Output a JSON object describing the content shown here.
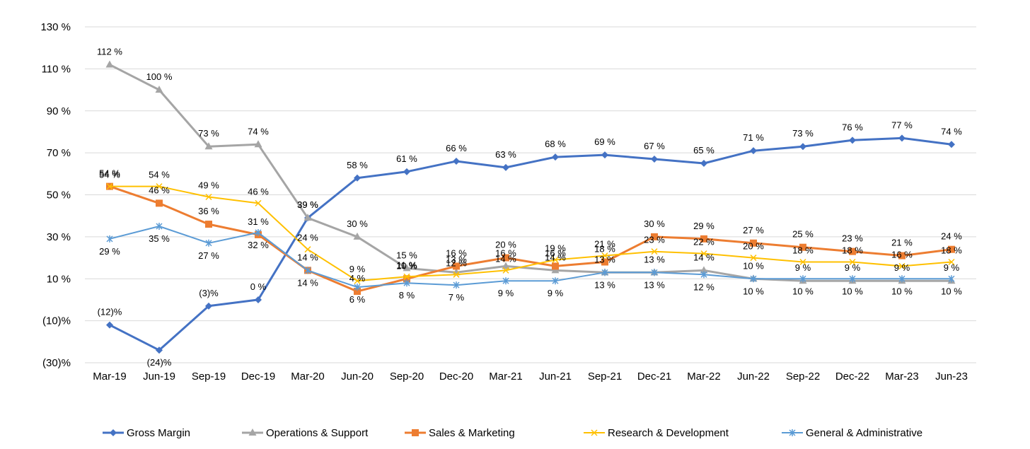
{
  "chart_data": {
    "type": "line",
    "categories": [
      "Mar-19",
      "Jun-19",
      "Sep-19",
      "Dec-19",
      "Mar-20",
      "Jun-20",
      "Sep-20",
      "Dec-20",
      "Mar-21",
      "Jun-21",
      "Sep-21",
      "Dec-21",
      "Mar-22",
      "Jun-22",
      "Sep-22",
      "Dec-22",
      "Mar-23",
      "Jun-23"
    ],
    "ylim": [
      -30,
      130
    ],
    "yticks": [
      -30,
      -10,
      10,
      30,
      50,
      70,
      90,
      110,
      130
    ],
    "ytick_labels": [
      "(30)%",
      "(10)%",
      "10 %",
      "30 %",
      "50 %",
      "70 %",
      "90 %",
      "110 %",
      "130 %"
    ],
    "grid": true,
    "legend_position": "bottom",
    "series": [
      {
        "name": "Gross Margin",
        "color": "#4472C4",
        "marker": "diamond",
        "values": [
          -12,
          -24,
          -3,
          0,
          39,
          58,
          61,
          66,
          63,
          68,
          69,
          67,
          65,
          71,
          73,
          76,
          77,
          74
        ],
        "labels": [
          "(12)%",
          "(24)%",
          "(3)%",
          "0 %",
          "39 %",
          "58 %",
          "61 %",
          "66 %",
          "63 %",
          "68 %",
          "69 %",
          "67 %",
          "65 %",
          "71 %",
          "73 %",
          "76 %",
          "77 %",
          "74 %"
        ]
      },
      {
        "name": "Operations & Support",
        "color": "#A5A5A5",
        "marker": "triangle",
        "values": [
          112,
          100,
          73,
          74,
          39,
          30,
          15,
          13,
          16,
          14,
          13,
          13,
          14,
          10,
          9,
          9,
          9,
          9
        ],
        "labels": [
          "112 %",
          "100 %",
          "73 %",
          "74 %",
          "39 %",
          "30 %",
          "15 %",
          "13 %",
          "16 %",
          "14 %",
          "13 %",
          "13 %",
          "14 %",
          "10 %",
          "9 %",
          "9 %",
          "9 %",
          "9 %"
        ]
      },
      {
        "name": "Sales & Marketing",
        "color": "#ED7D31",
        "marker": "square",
        "values": [
          54,
          46,
          36,
          31,
          14,
          4,
          10,
          16,
          20,
          16,
          18,
          30,
          29,
          27,
          25,
          23,
          21,
          24
        ],
        "labels": [
          "54 %",
          "46 %",
          "36 %",
          "31 %",
          "14 %",
          "4 %",
          "10 %",
          "16 %",
          "20 %",
          "16 %",
          "18 %",
          "30 %",
          "29 %",
          "27 %",
          "25 %",
          "23 %",
          "21 %",
          "24 %"
        ]
      },
      {
        "name": "Research & Development",
        "color": "#FFC000",
        "marker": "x",
        "values": [
          54,
          54,
          49,
          46,
          24,
          9,
          11,
          12,
          14,
          19,
          21,
          23,
          22,
          20,
          18,
          18,
          16,
          18
        ],
        "labels": [
          "54 %",
          "54 %",
          "49 %",
          "46 %",
          "24 %",
          "9 %",
          "11 %",
          "12 %",
          "14 %",
          "19 %",
          "21 %",
          "23 %",
          "22 %",
          "20 %",
          "18 %",
          "18 %",
          "16 %",
          "18 %"
        ]
      },
      {
        "name": "General & Administrative",
        "color": "#5B9BD5",
        "marker": "star",
        "values": [
          29,
          35,
          27,
          32,
          14,
          6,
          8,
          7,
          9,
          9,
          13,
          13,
          12,
          10,
          10,
          10,
          10,
          10
        ],
        "labels": [
          "29 %",
          "35 %",
          "27 %",
          "32 %",
          "14 %",
          "6 %",
          "8 %",
          "7 %",
          "9 %",
          "9 %",
          "13 %",
          "13 %",
          "12 %",
          "10 %",
          "10 %",
          "10 %",
          "10 %",
          "10 %"
        ]
      }
    ]
  }
}
